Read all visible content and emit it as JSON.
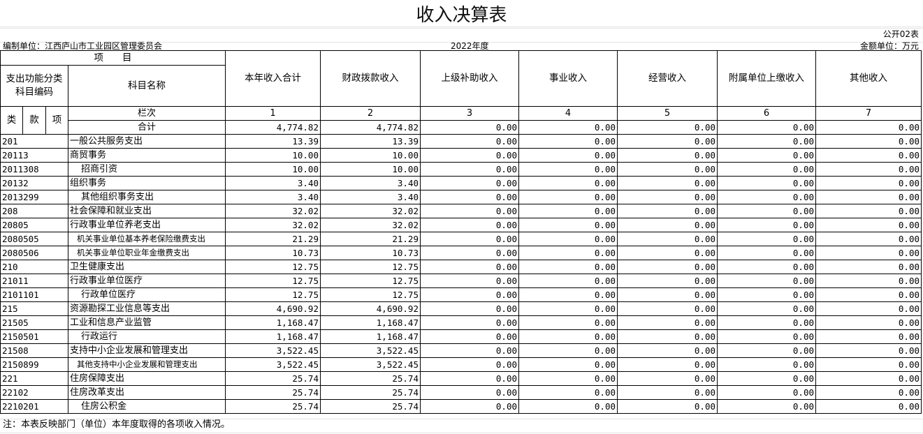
{
  "title": "收入决算表",
  "form_no": "公开02表",
  "unit": "编制单位：江西庐山市工业园区管理委员会",
  "year": "2022年度",
  "currency_unit": "金额单位：万元",
  "header": {
    "item": "项　　目",
    "code_group": "支出功能分类科目编码",
    "name": "科目名称",
    "lei": "类",
    "kuan": "款",
    "xiang": "项",
    "column_index_label": "栏次",
    "total_label": "合计",
    "columns": [
      "本年收入合计",
      "财政拨款收入",
      "上级补助收入",
      "事业收入",
      "经营收入",
      "附属单位上缴收入",
      "其他收入"
    ],
    "column_numbers": [
      "1",
      "2",
      "3",
      "4",
      "5",
      "6",
      "7"
    ]
  },
  "total": [
    "4,774.82",
    "4,774.82",
    "0.00",
    "0.00",
    "0.00",
    "0.00",
    "0.00"
  ],
  "rows": [
    {
      "code": "201",
      "name": "一般公共服务支出",
      "level": 1,
      "values": [
        "13.39",
        "13.39",
        "0.00",
        "0.00",
        "0.00",
        "0.00",
        "0.00"
      ]
    },
    {
      "code": "20113",
      "name": "商贸事务",
      "level": 2,
      "values": [
        "10.00",
        "10.00",
        "0.00",
        "0.00",
        "0.00",
        "0.00",
        "0.00"
      ]
    },
    {
      "code": "2011308",
      "name": "招商引资",
      "level": 3,
      "values": [
        "10.00",
        "10.00",
        "0.00",
        "0.00",
        "0.00",
        "0.00",
        "0.00"
      ]
    },
    {
      "code": "20132",
      "name": "组织事务",
      "level": 2,
      "values": [
        "3.40",
        "3.40",
        "0.00",
        "0.00",
        "0.00",
        "0.00",
        "0.00"
      ]
    },
    {
      "code": "2013299",
      "name": "其他组织事务支出",
      "level": 3,
      "values": [
        "3.40",
        "3.40",
        "0.00",
        "0.00",
        "0.00",
        "0.00",
        "0.00"
      ]
    },
    {
      "code": "208",
      "name": "社会保障和就业支出",
      "level": 1,
      "values": [
        "32.02",
        "32.02",
        "0.00",
        "0.00",
        "0.00",
        "0.00",
        "0.00"
      ]
    },
    {
      "code": "20805",
      "name": "行政事业单位养老支出",
      "level": 2,
      "values": [
        "32.02",
        "32.02",
        "0.00",
        "0.00",
        "0.00",
        "0.00",
        "0.00"
      ]
    },
    {
      "code": "2080505",
      "name": "机关事业单位基本养老保险缴费支出",
      "level": 3,
      "values": [
        "21.29",
        "21.29",
        "0.00",
        "0.00",
        "0.00",
        "0.00",
        "0.00"
      ]
    },
    {
      "code": "2080506",
      "name": "机关事业单位职业年金缴费支出",
      "level": 3,
      "values": [
        "10.73",
        "10.73",
        "0.00",
        "0.00",
        "0.00",
        "0.00",
        "0.00"
      ]
    },
    {
      "code": "210",
      "name": "卫生健康支出",
      "level": 1,
      "values": [
        "12.75",
        "12.75",
        "0.00",
        "0.00",
        "0.00",
        "0.00",
        "0.00"
      ]
    },
    {
      "code": "21011",
      "name": "行政事业单位医疗",
      "level": 2,
      "values": [
        "12.75",
        "12.75",
        "0.00",
        "0.00",
        "0.00",
        "0.00",
        "0.00"
      ]
    },
    {
      "code": "2101101",
      "name": "行政单位医疗",
      "level": 3,
      "values": [
        "12.75",
        "12.75",
        "0.00",
        "0.00",
        "0.00",
        "0.00",
        "0.00"
      ]
    },
    {
      "code": "215",
      "name": "资源勘探工业信息等支出",
      "level": 1,
      "values": [
        "4,690.92",
        "4,690.92",
        "0.00",
        "0.00",
        "0.00",
        "0.00",
        "0.00"
      ]
    },
    {
      "code": "21505",
      "name": "工业和信息产业监管",
      "level": 2,
      "values": [
        "1,168.47",
        "1,168.47",
        "0.00",
        "0.00",
        "0.00",
        "0.00",
        "0.00"
      ]
    },
    {
      "code": "2150501",
      "name": "行政运行",
      "level": 3,
      "values": [
        "1,168.47",
        "1,168.47",
        "0.00",
        "0.00",
        "0.00",
        "0.00",
        "0.00"
      ]
    },
    {
      "code": "21508",
      "name": "支持中小企业发展和管理支出",
      "level": 2,
      "values": [
        "3,522.45",
        "3,522.45",
        "0.00",
        "0.00",
        "0.00",
        "0.00",
        "0.00"
      ]
    },
    {
      "code": "2150899",
      "name": "其他支持中小企业发展和管理支出",
      "level": 3,
      "values": [
        "3,522.45",
        "3,522.45",
        "0.00",
        "0.00",
        "0.00",
        "0.00",
        "0.00"
      ]
    },
    {
      "code": "221",
      "name": "住房保障支出",
      "level": 1,
      "values": [
        "25.74",
        "25.74",
        "0.00",
        "0.00",
        "0.00",
        "0.00",
        "0.00"
      ]
    },
    {
      "code": "22102",
      "name": "住房改革支出",
      "level": 2,
      "values": [
        "25.74",
        "25.74",
        "0.00",
        "0.00",
        "0.00",
        "0.00",
        "0.00"
      ]
    },
    {
      "code": "2210201",
      "name": "住房公积金",
      "level": 3,
      "values": [
        "25.74",
        "25.74",
        "0.00",
        "0.00",
        "0.00",
        "0.00",
        "0.00"
      ]
    }
  ],
  "note": "注：本表反映部门（单位）本年度取得的各项收入情况。"
}
